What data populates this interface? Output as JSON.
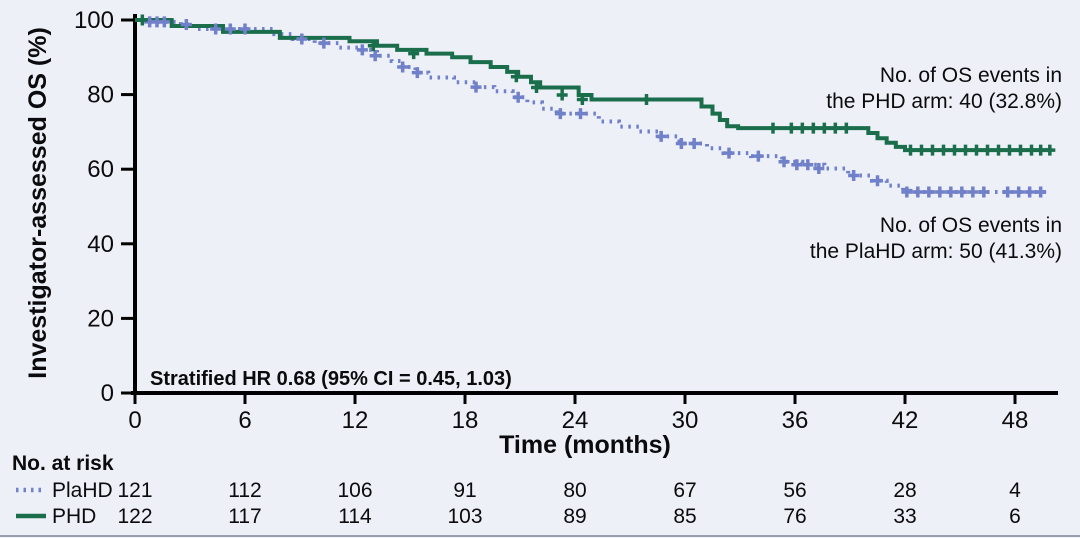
{
  "figure": {
    "background": "#eef0f8",
    "bottom_rule_color": "#98a0b0"
  },
  "chart_data": {
    "type": "line",
    "subtype": "kaplan_meier_step",
    "title": "",
    "xlabel": "Time (months)",
    "ylabel": "Investigator-assessed OS (%)",
    "xlim": [
      0,
      50.5
    ],
    "ylim": [
      0,
      100
    ],
    "xticks": [
      0,
      6,
      12,
      18,
      24,
      30,
      36,
      42,
      48
    ],
    "yticks": [
      0,
      20,
      40,
      60,
      80,
      100
    ],
    "grid": false,
    "axis_color": "#000000",
    "legend_position": "bottom-left-risk-table",
    "series": [
      {
        "name": "PlaHD",
        "color": "#7081c9",
        "line_style": "dotted",
        "steps": [
          [
            0,
            100
          ],
          [
            0.7,
            99.5
          ],
          [
            2.5,
            98.8
          ],
          [
            3.2,
            97.6
          ],
          [
            7.6,
            96.2
          ],
          [
            8.6,
            94.9
          ],
          [
            9.8,
            93.8
          ],
          [
            11.1,
            92.6
          ],
          [
            12.4,
            92.0
          ],
          [
            13.2,
            90.4
          ],
          [
            14.0,
            89.0
          ],
          [
            14.6,
            87.4
          ],
          [
            15.3,
            85.9
          ],
          [
            16.0,
            84.6
          ],
          [
            17.4,
            83.3
          ],
          [
            18.6,
            82.0
          ],
          [
            19.6,
            80.9
          ],
          [
            20.6,
            79.3
          ],
          [
            21.4,
            77.9
          ],
          [
            22.2,
            76.2
          ],
          [
            23.0,
            74.9
          ],
          [
            25.3,
            72.8
          ],
          [
            26.4,
            71.4
          ],
          [
            27.5,
            70.1
          ],
          [
            28.6,
            68.8
          ],
          [
            29.7,
            66.9
          ],
          [
            31.2,
            65.6
          ],
          [
            32.1,
            64.3
          ],
          [
            33.6,
            63.5
          ],
          [
            35.3,
            62.0
          ],
          [
            36.4,
            61.2
          ],
          [
            37.6,
            60.2
          ],
          [
            38.9,
            58.3
          ],
          [
            40.2,
            56.9
          ],
          [
            41.0,
            55.6
          ],
          [
            41.9,
            54.2
          ],
          [
            42.3,
            53.9
          ],
          [
            49.8,
            53.9
          ]
        ],
        "censor_marks": [
          [
            0.8,
            99.5
          ],
          [
            1.2,
            99.5
          ],
          [
            1.6,
            99.5
          ],
          [
            2.8,
            98.8
          ],
          [
            4.4,
            97.6
          ],
          [
            5.2,
            97.6
          ],
          [
            6.0,
            97.6
          ],
          [
            9.1,
            94.9
          ],
          [
            10.3,
            93.8
          ],
          [
            12.4,
            92.0
          ],
          [
            13.1,
            90.4
          ],
          [
            14.6,
            87.4
          ],
          [
            15.4,
            85.9
          ],
          [
            18.6,
            82.0
          ],
          [
            20.9,
            79.3
          ],
          [
            23.2,
            74.9
          ],
          [
            24.3,
            74.9
          ],
          [
            28.7,
            68.8
          ],
          [
            29.8,
            66.9
          ],
          [
            30.5,
            66.9
          ],
          [
            32.4,
            64.3
          ],
          [
            34.0,
            63.5
          ],
          [
            35.4,
            62.0
          ],
          [
            36.1,
            61.2
          ],
          [
            36.7,
            61.2
          ],
          [
            37.3,
            60.2
          ],
          [
            39.2,
            58.3
          ],
          [
            40.5,
            56.9
          ],
          [
            42.1,
            53.9
          ],
          [
            42.7,
            53.9
          ],
          [
            43.3,
            53.9
          ],
          [
            43.9,
            53.9
          ],
          [
            44.5,
            53.9
          ],
          [
            45.1,
            53.9
          ],
          [
            45.7,
            53.9
          ],
          [
            46.3,
            53.9
          ],
          [
            47.6,
            53.9
          ],
          [
            48.2,
            53.9
          ],
          [
            48.8,
            53.9
          ],
          [
            49.4,
            53.9
          ]
        ]
      },
      {
        "name": "PHD",
        "color": "#1a6e4b",
        "line_style": "solid",
        "steps": [
          [
            0,
            100
          ],
          [
            2.0,
            98.4
          ],
          [
            4.8,
            96.8
          ],
          [
            7.9,
            95.2
          ],
          [
            11.7,
            94.3
          ],
          [
            13.2,
            93.1
          ],
          [
            14.3,
            92.0
          ],
          [
            15.9,
            91.0
          ],
          [
            17.3,
            90.0
          ],
          [
            18.3,
            88.7
          ],
          [
            19.4,
            87.4
          ],
          [
            20.3,
            86.1
          ],
          [
            20.9,
            84.8
          ],
          [
            21.6,
            83.3
          ],
          [
            22.1,
            81.9
          ],
          [
            24.2,
            79.9
          ],
          [
            24.9,
            78.7
          ],
          [
            30.9,
            76.8
          ],
          [
            31.5,
            74.9
          ],
          [
            31.9,
            73.2
          ],
          [
            32.3,
            71.5
          ],
          [
            32.9,
            71.0
          ],
          [
            40.0,
            69.7
          ],
          [
            40.5,
            68.3
          ],
          [
            41.0,
            67.1
          ],
          [
            41.5,
            66.0
          ],
          [
            42.0,
            65.1
          ],
          [
            50.0,
            65.1
          ]
        ],
        "censor_marks": [
          [
            0.4,
            100
          ],
          [
            13.0,
            93.1
          ],
          [
            15.2,
            91.0
          ],
          [
            20.8,
            84.8
          ],
          [
            21.9,
            81.9
          ],
          [
            23.3,
            79.9
          ],
          [
            24.4,
            78.7
          ],
          [
            27.9,
            78.7
          ],
          [
            34.8,
            71.0
          ],
          [
            35.8,
            71.0
          ],
          [
            36.4,
            71.0
          ],
          [
            37.0,
            71.0
          ],
          [
            37.6,
            71.0
          ],
          [
            38.2,
            71.0
          ],
          [
            38.8,
            71.0
          ],
          [
            42.3,
            65.1
          ],
          [
            42.9,
            65.1
          ],
          [
            43.5,
            65.1
          ],
          [
            44.1,
            65.1
          ],
          [
            44.7,
            65.1
          ],
          [
            45.3,
            65.1
          ],
          [
            45.9,
            65.1
          ],
          [
            46.5,
            65.1
          ],
          [
            47.1,
            65.1
          ],
          [
            47.7,
            65.1
          ],
          [
            48.3,
            65.1
          ],
          [
            48.9,
            65.1
          ],
          [
            49.4,
            65.1
          ],
          [
            49.9,
            65.1
          ]
        ]
      }
    ],
    "annotations": {
      "hr": "Stratified HR 0.68 (95% CI = 0.45, 1.03)",
      "phd_events_line1": "No. of OS events in",
      "phd_events_line2": "the PHD arm: 40 (32.8%)",
      "plahd_events_line1": "No. of OS events in",
      "plahd_events_line2": "the PlaHD arm: 50 (41.3%)"
    }
  },
  "risk_table": {
    "title": "No. at risk",
    "months": [
      0,
      6,
      12,
      18,
      24,
      30,
      36,
      42,
      48
    ],
    "rows": [
      {
        "name": "PlaHD",
        "line_style": "dotted",
        "color": "#7081c9",
        "values": [
          121,
          112,
          106,
          91,
          80,
          67,
          56,
          28,
          4
        ]
      },
      {
        "name": "PHD",
        "line_style": "solid",
        "color": "#1a6e4b",
        "values": [
          122,
          117,
          114,
          103,
          89,
          85,
          76,
          33,
          6
        ]
      }
    ]
  }
}
